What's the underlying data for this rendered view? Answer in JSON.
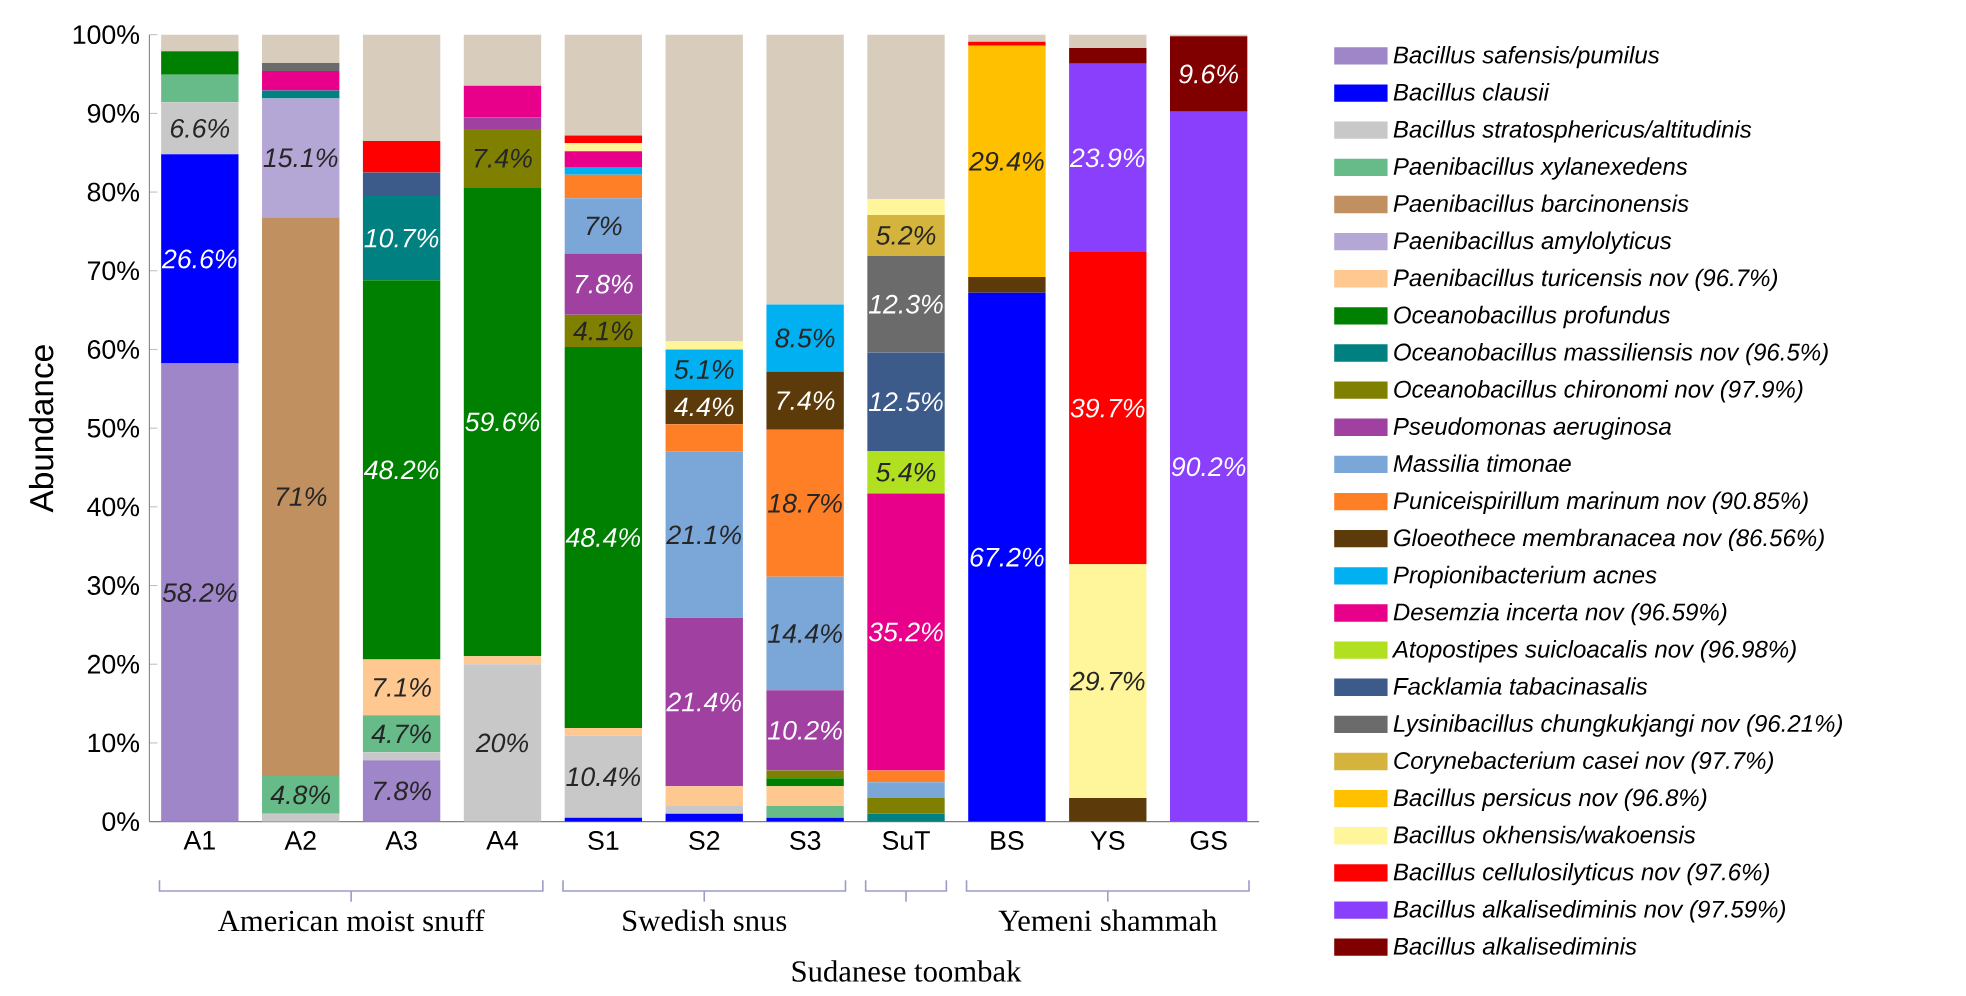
{
  "chart_data": {
    "type": "bar",
    "stacked": true,
    "ylabel": "Abundance",
    "categories": [
      "A1",
      "A2",
      "A3",
      "A4",
      "S1",
      "S2",
      "S3",
      "SuT",
      "BS",
      "YS",
      "GS"
    ],
    "ylim": [
      0,
      100
    ],
    "yticks": [
      {
        "value": 0,
        "label": "0%"
      },
      {
        "value": 10,
        "label": "10%"
      },
      {
        "value": 20,
        "label": "20%"
      },
      {
        "value": 30,
        "label": "30%"
      },
      {
        "value": 40,
        "label": "40%"
      },
      {
        "value": 50,
        "label": "50%"
      },
      {
        "value": 60,
        "label": "60%"
      },
      {
        "value": 70,
        "label": "70%"
      },
      {
        "value": 80,
        "label": "80%"
      },
      {
        "value": 90,
        "label": "90%"
      },
      {
        "value": 100,
        "label": "100%"
      }
    ],
    "legend": "right",
    "annotations": [
      "American moist snuff",
      "Swedish snus",
      "Sudanese toombak",
      "Yemeni shammah"
    ],
    "series": [
      {
        "name": "Bacillus safensis/pumilus",
        "color": "#9e86c8",
        "values": [
          58.2,
          0,
          7.8,
          0,
          0,
          0,
          0,
          0,
          0,
          0,
          0
        ],
        "value_labels": [
          "58.2%",
          null,
          "7.8%",
          null,
          null,
          null,
          null,
          null,
          null,
          null,
          null
        ]
      },
      {
        "name": "Bacillus clausii",
        "color": "#0000ff",
        "values": [
          26.6,
          0,
          0,
          0,
          0.5,
          1,
          0.5,
          0,
          67.2,
          0,
          0
        ],
        "value_labels": [
          "26.6%",
          null,
          null,
          null,
          null,
          null,
          null,
          null,
          "67.2%",
          null,
          null
        ]
      },
      {
        "name": "Bacillus stratosphericus/altitudinis",
        "color": "#c8c8c8",
        "values": [
          6.6,
          1,
          1,
          20,
          10.4,
          1,
          0,
          0,
          0,
          0,
          0
        ],
        "value_labels": [
          "6.6%",
          null,
          null,
          "20%",
          "10.4%",
          null,
          null,
          null,
          null,
          null,
          null
        ]
      },
      {
        "name": "Paenibacillus xylanexedens",
        "color": "#66bb88",
        "values": [
          3.5,
          4.8,
          4.7,
          0,
          0,
          0,
          1.5,
          0,
          0,
          0,
          0
        ],
        "value_labels": [
          null,
          "4.8%",
          "4.7%",
          null,
          null,
          null,
          null,
          null,
          null,
          null,
          null
        ]
      },
      {
        "name": "Paenibacillus barcinonensis",
        "color": "#c09060",
        "values": [
          0,
          71,
          0,
          0,
          0,
          0,
          0,
          0,
          0,
          0,
          0
        ],
        "value_labels": [
          null,
          "71%",
          null,
          null,
          null,
          null,
          null,
          null,
          null,
          null,
          null
        ]
      },
      {
        "name": "Paenibacillus amylolyticus",
        "color": "#b4a7d6",
        "values": [
          0,
          15.1,
          0,
          0,
          0,
          0,
          0,
          0,
          0,
          0,
          0
        ],
        "value_labels": [
          null,
          "15.1%",
          null,
          null,
          null,
          null,
          null,
          null,
          null,
          null,
          null
        ]
      },
      {
        "name": "Paenibacillus turicensis nov (96.7%)",
        "color": "#ffc890",
        "values": [
          0,
          0,
          7.1,
          1,
          1,
          2.5,
          2.5,
          0,
          0,
          0,
          0
        ],
        "value_labels": [
          null,
          null,
          "7.1%",
          null,
          null,
          null,
          null,
          null,
          null,
          null,
          null
        ]
      },
      {
        "name": "Oceanobacillus profundus",
        "color": "#008000",
        "values": [
          3,
          0,
          48.2,
          59.6,
          48.4,
          0,
          1,
          0,
          0,
          0,
          0
        ],
        "value_labels": [
          null,
          null,
          "48.2%",
          "59.6%",
          "48.4%",
          null,
          null,
          null,
          null,
          null,
          null
        ]
      },
      {
        "name": "Oceanobacillus massiliensis nov (96.5%)",
        "color": "#008080",
        "values": [
          0,
          1,
          10.7,
          0,
          0,
          0,
          0,
          1,
          0,
          0,
          0
        ],
        "value_labels": [
          null,
          null,
          "10.7%",
          null,
          null,
          null,
          null,
          null,
          null,
          null,
          null
        ]
      },
      {
        "name": "Oceanobacillus chironomi nov (97.9%)",
        "color": "#808000",
        "values": [
          0,
          0,
          0,
          7.4,
          4.1,
          0,
          1,
          2,
          0,
          0,
          0
        ],
        "value_labels": [
          null,
          null,
          null,
          "7.4%",
          "4.1%",
          null,
          null,
          null,
          null,
          null,
          null
        ]
      },
      {
        "name": "Pseudomonas aeruginosa",
        "color": "#a040a0",
        "values": [
          0,
          0,
          0,
          1.5,
          7.8,
          21.4,
          10.2,
          0,
          0,
          0,
          0
        ],
        "value_labels": [
          null,
          null,
          null,
          null,
          "7.8%",
          "21.4%",
          "10.2%",
          null,
          null,
          null,
          null
        ]
      },
      {
        "name": "Massilia timonae",
        "color": "#7ba7d8",
        "values": [
          0,
          0,
          0,
          0,
          7,
          21.1,
          14.4,
          2,
          0,
          0,
          0
        ],
        "value_labels": [
          null,
          null,
          null,
          null,
          "7%",
          "21.1%",
          "14.4%",
          null,
          null,
          null,
          null
        ]
      },
      {
        "name": "Puniceispirillum marinum nov  (90.85%)",
        "color": "#ff7f27",
        "values": [
          0,
          0,
          0,
          0,
          3,
          3.5,
          18.7,
          1.5,
          0,
          0,
          0
        ],
        "value_labels": [
          null,
          null,
          null,
          null,
          null,
          null,
          "18.7%",
          null,
          null,
          null,
          null
        ]
      },
      {
        "name": "Gloeothece membranacea nov (86.56%)",
        "color": "#5c3a0a",
        "values": [
          0,
          0,
          0,
          0,
          0,
          4.4,
          7.4,
          0,
          2,
          3,
          0
        ],
        "value_labels": [
          null,
          null,
          null,
          null,
          null,
          "4.4%",
          "7.4%",
          null,
          null,
          null,
          null
        ]
      },
      {
        "name": "Propionibacterium acnes",
        "color": "#00b0f0",
        "values": [
          0,
          0,
          0,
          0,
          1,
          5.1,
          8.5,
          0,
          0,
          0,
          0
        ],
        "value_labels": [
          null,
          null,
          null,
          null,
          null,
          "5.1%",
          "8.5%",
          null,
          null,
          null,
          null
        ]
      },
      {
        "name": "Desemzia incerta nov (96.59%)",
        "color": "#e8008a",
        "values": [
          0,
          2.5,
          0,
          4,
          2,
          0,
          0,
          35.2,
          0,
          0,
          0
        ],
        "value_labels": [
          null,
          null,
          null,
          null,
          null,
          null,
          null,
          "35.2%",
          null,
          null,
          null
        ]
      },
      {
        "name": "Atopostipes suicloacalis nov (96.98%)",
        "color": "#b0e020",
        "values": [
          0,
          0,
          0,
          0,
          0,
          0,
          0,
          5.4,
          0,
          0,
          0
        ],
        "value_labels": [
          null,
          null,
          null,
          null,
          null,
          null,
          null,
          "5.4%",
          null,
          null,
          null
        ]
      },
      {
        "name": "Facklamia tabacinasalis",
        "color": "#3c5a8a",
        "values": [
          0,
          0,
          3,
          0,
          0,
          0,
          0,
          12.5,
          0,
          0,
          0
        ],
        "value_labels": [
          null,
          null,
          null,
          null,
          null,
          null,
          null,
          "12.5%",
          null,
          null,
          null
        ]
      },
      {
        "name": "Lysinibacillus chungkukjangi nov (96.21%)",
        "color": "#6b6b6b",
        "values": [
          0,
          1,
          0,
          0,
          0,
          0,
          0,
          12.3,
          0,
          0,
          0
        ],
        "value_labels": [
          null,
          null,
          null,
          null,
          null,
          null,
          null,
          "12.3%",
          null,
          null,
          null
        ]
      },
      {
        "name": "Corynebacterium casei nov (97.7%)",
        "color": "#d4b43c",
        "values": [
          0,
          0,
          0,
          0,
          0,
          0,
          0,
          5.2,
          0,
          0,
          0
        ],
        "value_labels": [
          null,
          null,
          null,
          null,
          null,
          null,
          null,
          "5.2%",
          null,
          null,
          null
        ]
      },
      {
        "name": "Bacillus persicus nov (96.8%)",
        "color": "#ffc000",
        "values": [
          0,
          0,
          0,
          0,
          0,
          0,
          0,
          0,
          29.4,
          0,
          0
        ],
        "value_labels": [
          null,
          null,
          null,
          null,
          null,
          null,
          null,
          null,
          "29.4%",
          null,
          null
        ]
      },
      {
        "name": "Bacillus okhensis/wakoensis",
        "color": "#fff59a",
        "values": [
          0,
          0,
          0,
          0,
          1,
          1,
          0,
          2,
          0,
          29.7,
          0
        ],
        "value_labels": [
          null,
          null,
          null,
          null,
          null,
          null,
          null,
          null,
          null,
          "29.7%",
          null
        ]
      },
      {
        "name": "Bacillus cellulosilyticus nov (97.6%)",
        "color": "#ff0000",
        "values": [
          0,
          0,
          4,
          0,
          1,
          0,
          0,
          0,
          0.5,
          39.7,
          0
        ],
        "value_labels": [
          null,
          null,
          null,
          null,
          null,
          null,
          null,
          null,
          null,
          "39.7%",
          null
        ]
      },
      {
        "name": "Bacillus alkalisediminis nov (97.59%)",
        "color": "#8a3ffc",
        "values": [
          0,
          0,
          0,
          0,
          0,
          0,
          0,
          0,
          0,
          23.9,
          90.2
        ],
        "value_labels": [
          null,
          null,
          null,
          null,
          null,
          null,
          null,
          null,
          null,
          "23.9%",
          "90.2%"
        ]
      },
      {
        "name": "Bacillus alkalisediminis",
        "color": "#800000",
        "values": [
          0,
          0,
          0,
          0,
          0,
          0,
          0,
          0,
          0,
          2,
          9.6
        ],
        "value_labels": [
          null,
          null,
          null,
          null,
          null,
          null,
          null,
          null,
          null,
          null,
          "9.6%"
        ]
      },
      {
        "color": "#d8ccbc",
        "values": [
          2.1,
          3.6,
          13.5,
          6.5,
          12.8,
          39,
          34.3,
          20.9,
          0.9,
          1.7,
          0.2
        ]
      }
    ]
  }
}
